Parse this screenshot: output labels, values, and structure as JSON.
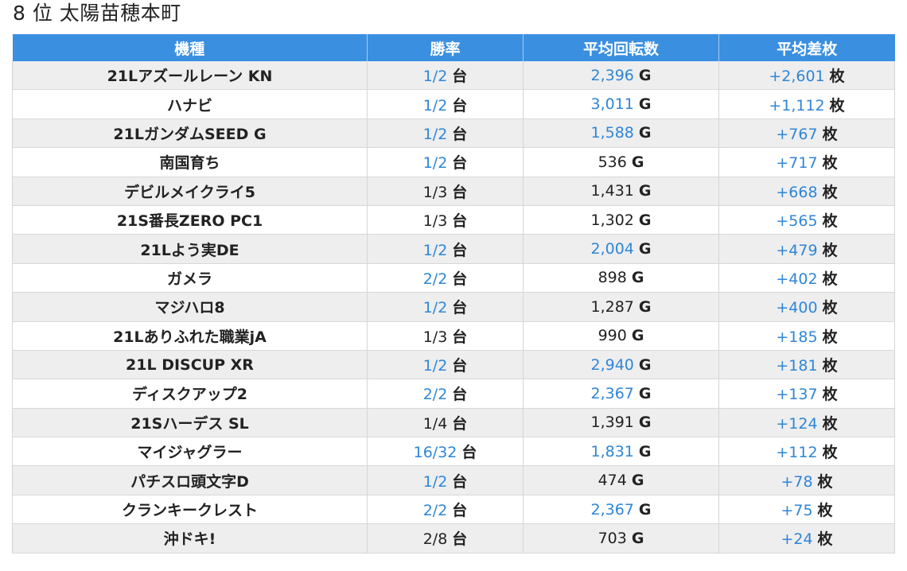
{
  "title": "8 位 太陽苗穂本町",
  "table": {
    "headers": [
      "機種",
      "勝率",
      "平均回転数",
      "平均差枚"
    ],
    "rate_unit": "台",
    "spin_unit": "G",
    "diff_unit": "枚",
    "link_color": "#2f86d6",
    "header_color": "#3a8fe0",
    "rows": [
      {
        "name": "21Lアズールレーン KN",
        "rate": "1/2",
        "rate_link": true,
        "spin": "2,396",
        "spin_link": true,
        "diff": "+2,601"
      },
      {
        "name": "ハナビ",
        "rate": "1/2",
        "rate_link": true,
        "spin": "3,011",
        "spin_link": true,
        "diff": "+1,112"
      },
      {
        "name": "21LガンダムSEED G",
        "rate": "1/2",
        "rate_link": true,
        "spin": "1,588",
        "spin_link": true,
        "diff": "+767"
      },
      {
        "name": "南国育ち",
        "rate": "1/2",
        "rate_link": true,
        "spin": "536",
        "spin_link": false,
        "diff": "+717"
      },
      {
        "name": "デビルメイクライ5",
        "rate": "1/3",
        "rate_link": false,
        "spin": "1,431",
        "spin_link": false,
        "diff": "+668"
      },
      {
        "name": "21S番長ZERO PC1",
        "rate": "1/3",
        "rate_link": false,
        "spin": "1,302",
        "spin_link": false,
        "diff": "+565"
      },
      {
        "name": "21Lよう実DE",
        "rate": "1/2",
        "rate_link": true,
        "spin": "2,004",
        "spin_link": true,
        "diff": "+479"
      },
      {
        "name": "ガメラ",
        "rate": "2/2",
        "rate_link": true,
        "spin": "898",
        "spin_link": false,
        "diff": "+402"
      },
      {
        "name": "マジハロ8",
        "rate": "1/2",
        "rate_link": true,
        "spin": "1,287",
        "spin_link": false,
        "diff": "+400"
      },
      {
        "name": "21Lありふれた職業jA",
        "rate": "1/3",
        "rate_link": false,
        "spin": "990",
        "spin_link": false,
        "diff": "+185"
      },
      {
        "name": "21L DISCUP XR",
        "rate": "1/2",
        "rate_link": true,
        "spin": "2,940",
        "spin_link": true,
        "diff": "+181"
      },
      {
        "name": "ディスクアップ2",
        "rate": "2/2",
        "rate_link": true,
        "spin": "2,367",
        "spin_link": true,
        "diff": "+137"
      },
      {
        "name": "21Sハーデス SL",
        "rate": "1/4",
        "rate_link": false,
        "spin": "1,391",
        "spin_link": false,
        "diff": "+124"
      },
      {
        "name": "マイジャグラー",
        "rate": "16/32",
        "rate_link": true,
        "spin": "1,831",
        "spin_link": true,
        "diff": "+112"
      },
      {
        "name": "パチスロ頭文字D",
        "rate": "1/2",
        "rate_link": true,
        "spin": "474",
        "spin_link": false,
        "diff": "+78"
      },
      {
        "name": "クランキークレスト",
        "rate": "2/2",
        "rate_link": true,
        "spin": "2,367",
        "spin_link": true,
        "diff": "+75"
      },
      {
        "name": "沖ドキ!",
        "rate": "2/8",
        "rate_link": false,
        "spin": "703",
        "spin_link": false,
        "diff": "+24"
      }
    ]
  }
}
